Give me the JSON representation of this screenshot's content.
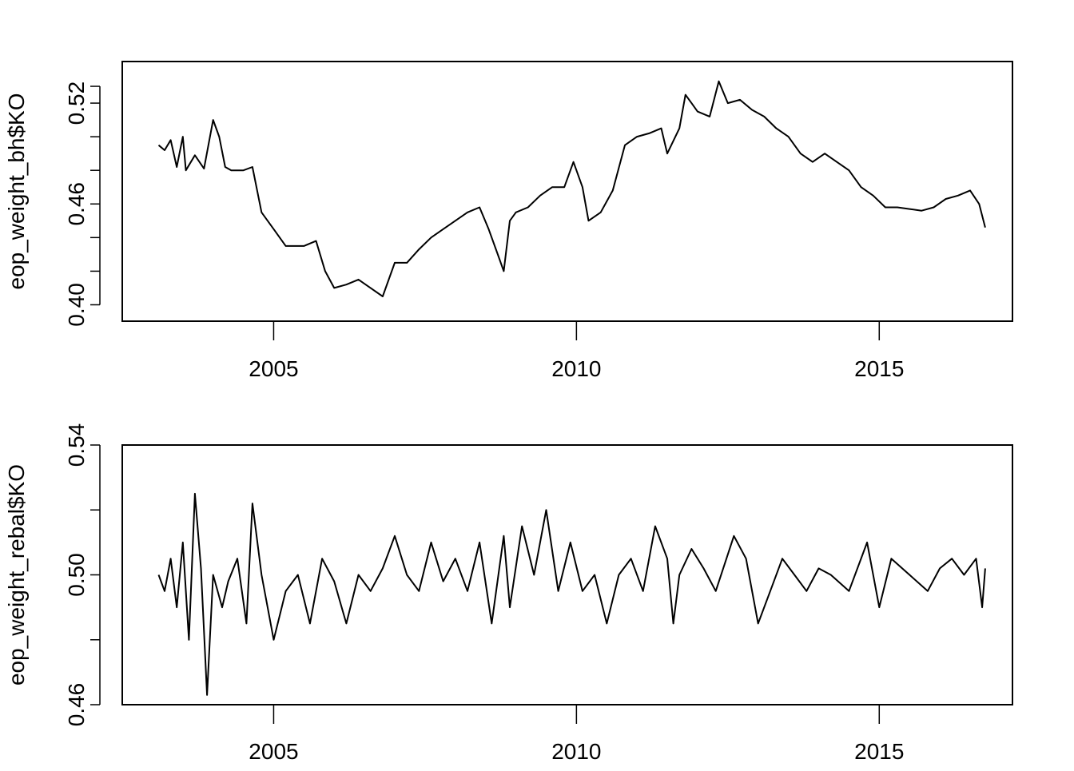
{
  "chart_data": [
    {
      "type": "line",
      "ylabel": "eop_weight_bh$KO",
      "xlim": [
        2002.5,
        2017.2
      ],
      "ylim": [
        0.395,
        0.54
      ],
      "xticks": [
        2005,
        2010,
        2015
      ],
      "xtick_labels": [
        "2005",
        "2010",
        "2015"
      ],
      "yticks": [
        0.4,
        0.42,
        0.44,
        0.46,
        0.48,
        0.5,
        0.52,
        0.53
      ],
      "ytick_labels": [
        "0.40",
        "",
        "",
        "0.46",
        "",
        "",
        "0.52",
        ""
      ],
      "grid": false,
      "series": [
        {
          "color": "#000000",
          "x": [
            2003.1,
            2003.2,
            2003.3,
            2003.4,
            2003.5,
            2003.55,
            2003.7,
            2003.85,
            2004.0,
            2004.1,
            2004.2,
            2004.3,
            2004.5,
            2004.65,
            2004.8,
            2005.0,
            2005.2,
            2005.5,
            2005.7,
            2005.85,
            2006.0,
            2006.2,
            2006.4,
            2006.6,
            2006.8,
            2007.0,
            2007.2,
            2007.4,
            2007.6,
            2007.8,
            2008.0,
            2008.2,
            2008.4,
            2008.55,
            2008.7,
            2008.8,
            2008.9,
            2009.0,
            2009.2,
            2009.4,
            2009.6,
            2009.8,
            2009.95,
            2010.1,
            2010.2,
            2010.4,
            2010.6,
            2010.8,
            2011.0,
            2011.2,
            2011.4,
            2011.5,
            2011.7,
            2011.8,
            2011.9,
            2012.0,
            2012.2,
            2012.35,
            2012.5,
            2012.7,
            2012.9,
            2013.1,
            2013.3,
            2013.5,
            2013.7,
            2013.9,
            2014.1,
            2014.3,
            2014.5,
            2014.7,
            2014.9,
            2015.1,
            2015.3,
            2015.5,
            2015.7,
            2015.9,
            2016.1,
            2016.3,
            2016.5,
            2016.65,
            2016.75
          ],
          "y": [
            0.495,
            0.492,
            0.498,
            0.482,
            0.5,
            0.48,
            0.489,
            0.481,
            0.51,
            0.5,
            0.482,
            0.48,
            0.48,
            0.482,
            0.455,
            0.445,
            0.435,
            0.435,
            0.438,
            0.42,
            0.41,
            0.412,
            0.415,
            0.41,
            0.405,
            0.425,
            0.425,
            0.433,
            0.44,
            0.445,
            0.45,
            0.455,
            0.458,
            0.445,
            0.43,
            0.42,
            0.45,
            0.455,
            0.458,
            0.465,
            0.47,
            0.47,
            0.485,
            0.47,
            0.45,
            0.455,
            0.468,
            0.495,
            0.5,
            0.502,
            0.505,
            0.49,
            0.505,
            0.525,
            0.52,
            0.515,
            0.512,
            0.533,
            0.52,
            0.522,
            0.516,
            0.512,
            0.505,
            0.5,
            0.49,
            0.485,
            0.49,
            0.485,
            0.48,
            0.47,
            0.465,
            0.458,
            0.458,
            0.457,
            0.456,
            0.458,
            0.463,
            0.465,
            0.468,
            0.46,
            0.446
          ]
        }
      ]
    },
    {
      "type": "line",
      "ylabel": "eop_weight_rebal$KO",
      "xlim": [
        2002.5,
        2017.2
      ],
      "ylim": [
        0.46,
        0.54
      ],
      "xticks": [
        2005,
        2010,
        2015
      ],
      "xtick_labels": [
        "2005",
        "2010",
        "2015"
      ],
      "yticks": [
        0.46,
        0.48,
        0.5,
        0.52,
        0.54
      ],
      "ytick_labels": [
        "0.46",
        "",
        "0.50",
        "",
        "0.54"
      ],
      "grid": false,
      "series": [
        {
          "color": "#000000",
          "x": [
            2003.1,
            2003.2,
            2003.3,
            2003.4,
            2003.5,
            2003.6,
            2003.7,
            2003.8,
            2003.9,
            2004.0,
            2004.15,
            2004.25,
            2004.4,
            2004.55,
            2004.65,
            2004.8,
            2005.0,
            2005.2,
            2005.4,
            2005.6,
            2005.8,
            2006.0,
            2006.2,
            2006.4,
            2006.6,
            2006.8,
            2007.0,
            2007.2,
            2007.4,
            2007.6,
            2007.8,
            2008.0,
            2008.2,
            2008.4,
            2008.6,
            2008.8,
            2008.9,
            2009.1,
            2009.3,
            2009.5,
            2009.7,
            2009.9,
            2010.1,
            2010.3,
            2010.5,
            2010.7,
            2010.9,
            2011.1,
            2011.3,
            2011.5,
            2011.6,
            2011.7,
            2011.9,
            2012.1,
            2012.3,
            2012.6,
            2012.8,
            2013.0,
            2013.2,
            2013.4,
            2013.6,
            2013.8,
            2014.0,
            2014.2,
            2014.5,
            2014.8,
            2015.0,
            2015.2,
            2015.5,
            2015.8,
            2016.0,
            2016.2,
            2016.4,
            2016.6,
            2016.7,
            2016.75
          ],
          "y": [
            0.5,
            0.495,
            0.505,
            0.49,
            0.51,
            0.48,
            0.525,
            0.502,
            0.463,
            0.5,
            0.49,
            0.498,
            0.505,
            0.485,
            0.522,
            0.5,
            0.48,
            0.495,
            0.5,
            0.485,
            0.505,
            0.498,
            0.485,
            0.5,
            0.495,
            0.502,
            0.512,
            0.5,
            0.495,
            0.51,
            0.498,
            0.505,
            0.495,
            0.51,
            0.485,
            0.512,
            0.49,
            0.515,
            0.5,
            0.52,
            0.495,
            0.51,
            0.495,
            0.5,
            0.485,
            0.5,
            0.505,
            0.495,
            0.515,
            0.505,
            0.485,
            0.5,
            0.508,
            0.502,
            0.495,
            0.512,
            0.505,
            0.485,
            0.495,
            0.505,
            0.5,
            0.495,
            0.502,
            0.5,
            0.495,
            0.51,
            0.49,
            0.505,
            0.5,
            0.495,
            0.502,
            0.505,
            0.5,
            0.505,
            0.49,
            0.502
          ]
        }
      ]
    }
  ]
}
